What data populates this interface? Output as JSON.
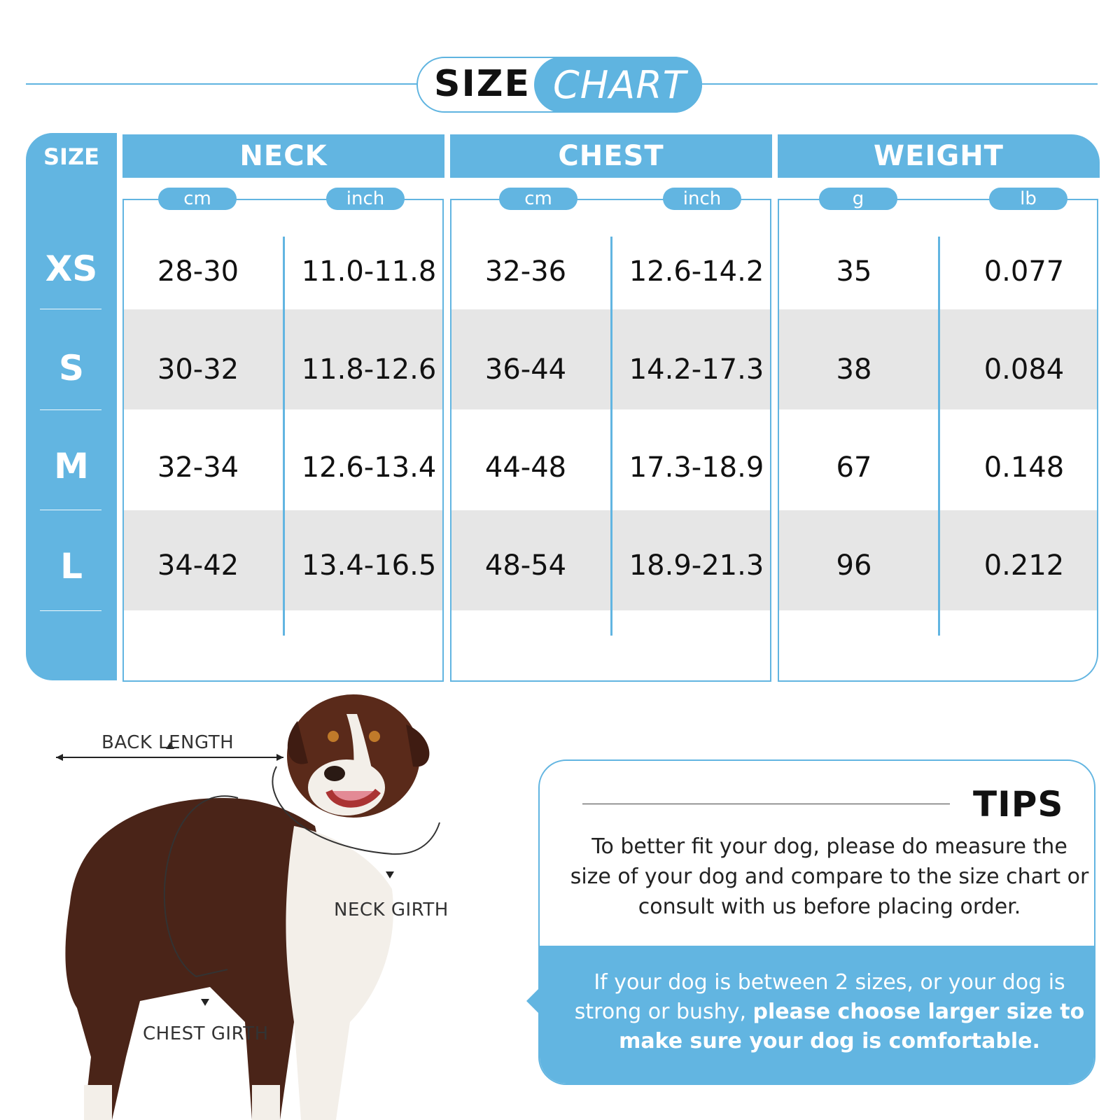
{
  "title": {
    "word1": "SIZE",
    "word2": "CHART"
  },
  "size_header": "SIZE",
  "groups": [
    {
      "name": "NECK",
      "units": [
        "cm",
        "inch"
      ]
    },
    {
      "name": "CHEST",
      "units": [
        "cm",
        "inch"
      ]
    },
    {
      "name": "WEIGHT",
      "units": [
        "g",
        "lb"
      ]
    }
  ],
  "rows": [
    {
      "size": "XS",
      "values": [
        "28-30",
        "11.0-11.8",
        "32-36",
        "12.6-14.2",
        "35",
        "0.077"
      ]
    },
    {
      "size": "S",
      "values": [
        "30-32",
        "11.8-12.6",
        "36-44",
        "14.2-17.3",
        "38",
        "0.084"
      ]
    },
    {
      "size": "M",
      "values": [
        "32-34",
        "12.6-13.4",
        "44-48",
        "17.3-18.9",
        "67",
        "0.148"
      ]
    },
    {
      "size": "L",
      "values": [
        "34-42",
        "13.4-16.5",
        "48-54",
        "18.9-21.3",
        "96",
        "0.212"
      ]
    }
  ],
  "measure_labels": {
    "back_length": "BACK LENGTH",
    "neck_girth": "NECK GIRTH",
    "chest_girth": "CHEST GIRTH"
  },
  "tips": {
    "title": "TIPS",
    "text": "To better fit your dog, please do measure the size of your dog and compare to the size chart or consult with us before placing order.",
    "note_plain": "If your dog is between 2 sizes, or your dog is strong or bushy, ",
    "note_bold": "please choose larger size to make sure your dog is comfortable."
  },
  "colors": {
    "accent": "#62b5e1",
    "row_shade": "#e6e6e6",
    "text": "#111111"
  }
}
